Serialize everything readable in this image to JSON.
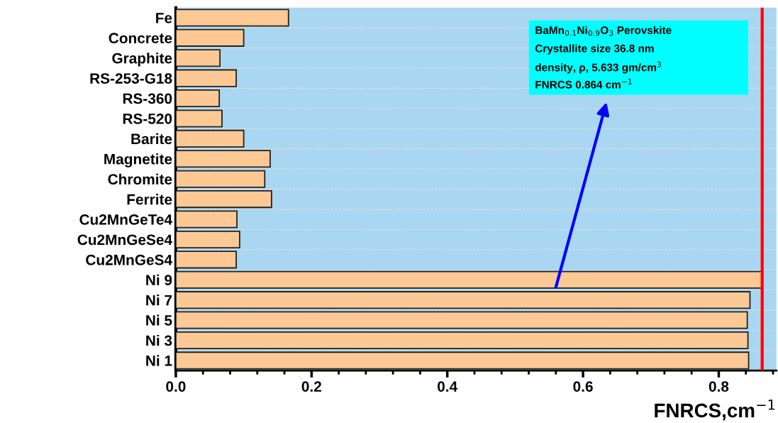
{
  "chart_data": {
    "type": "bar",
    "orientation": "horizontal",
    "categories": [
      "Fe",
      "Concrete",
      "Graphite",
      "RS-253-G18",
      "RS-360",
      "RS-520",
      "Barite",
      "Magnetite",
      "Chromite",
      "Ferrite",
      "Cu2MnGeTe4",
      "Cu2MnGeSe4",
      "Cu2MnGeS4",
      "Ni 9",
      "Ni 7",
      "Ni 5",
      "Ni 3",
      "Ni 1"
    ],
    "series": [
      {
        "color": "#fcc894",
        "values": [
          0.166,
          0.1,
          0.065,
          0.089,
          0.064,
          0.068,
          0.1,
          0.139,
          0.131,
          0.141,
          0.09,
          0.094,
          0.089,
          0.864,
          0.846,
          0.842,
          0.843,
          0.844
        ]
      }
    ],
    "xlabel": "FNRCS,cm$^{−1}$",
    "xlim": [
      0,
      0.885
    ],
    "xticks": [
      {
        "value": 0,
        "label": "0.0"
      },
      0.2,
      0.4,
      0.6,
      0.8
    ],
    "ref_lines": [
      {
        "axis": "x",
        "value": 0.864,
        "color": "#ff0000"
      }
    ],
    "annotations": [
      "BaMn$_{0.1}$Ni$_{0.9}$O$_{3}$ Perovskite",
      "Crystallite size 36.8 nm",
      "density, ρ, 5.633 gm/cm$^{3}$",
      "FNRCS 0.864 cm$^{−1}$"
    ],
    "grid": "y",
    "legend": false
  }
}
